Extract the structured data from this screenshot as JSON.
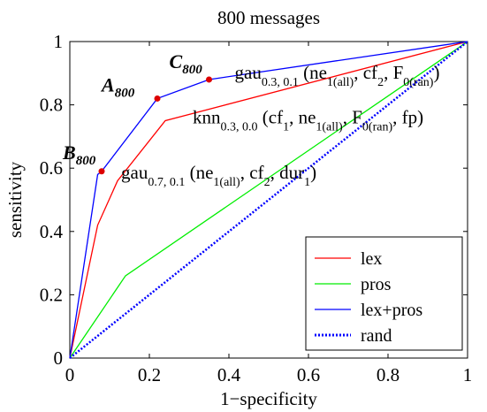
{
  "chart_data": {
    "type": "line",
    "title": "800 messages",
    "xlabel": "1−specificity",
    "ylabel": "sensitivity",
    "xlim": [
      0,
      1
    ],
    "ylim": [
      0,
      1
    ],
    "xticks": [
      "0",
      "0.2",
      "0.4",
      "0.6",
      "0.8",
      "1"
    ],
    "yticks": [
      "0",
      "0.2",
      "0.4",
      "0.6",
      "0.8",
      "1"
    ],
    "grid": false,
    "legend_position": "bottom-right",
    "series": [
      {
        "name": "lex",
        "color": "#ff0000",
        "style": "solid",
        "x": [
          0,
          0.07,
          0.12,
          0.24,
          1
        ],
        "y": [
          0,
          0.42,
          0.56,
          0.75,
          1
        ]
      },
      {
        "name": "pros",
        "color": "#00ee00",
        "style": "solid",
        "x": [
          0,
          0.14,
          1
        ],
        "y": [
          0,
          0.26,
          1
        ]
      },
      {
        "name": "lex+pros",
        "color": "#0000ff",
        "style": "solid",
        "x": [
          0,
          0.07,
          0.08,
          0.22,
          0.35,
          1
        ],
        "y": [
          0,
          0.58,
          0.59,
          0.82,
          0.88,
          1
        ]
      },
      {
        "name": "rand",
        "color": "#0000ff",
        "style": "dotted",
        "x": [
          0,
          1
        ],
        "y": [
          0,
          1
        ]
      }
    ],
    "points": [
      {
        "label": "B",
        "sub": "800",
        "x": 0.08,
        "y": 0.59,
        "annotation": {
          "base": "gau",
          "sub": "0.7, 0.1",
          "parts": [
            {
              "t": " (ne",
              "s": "1(all)"
            },
            {
              "t": ", cf",
              "s": "2"
            },
            {
              "t": ", dur",
              "s": "1"
            },
            {
              "t": ")",
              "s": ""
            }
          ]
        }
      },
      {
        "label": "A",
        "sub": "800",
        "x": 0.22,
        "y": 0.82,
        "annotation": {
          "base": "knn",
          "sub": "0.3, 0.0",
          "parts": [
            {
              "t": " (cf",
              "s": "1"
            },
            {
              "t": ", ne",
              "s": "1(all)"
            },
            {
              "t": ", F",
              "s": "0(ran)"
            },
            {
              "t": ", fp)",
              "s": ""
            }
          ]
        }
      },
      {
        "label": "C",
        "sub": "800",
        "x": 0.35,
        "y": 0.88,
        "annotation": {
          "base": "gau",
          "sub": "0.3, 0.1",
          "parts": [
            {
              "t": " (ne",
              "s": "1(all)"
            },
            {
              "t": ", cf",
              "s": "2"
            },
            {
              "t": ", F",
              "s": "0(ran)"
            },
            {
              "t": ")",
              "s": ""
            }
          ]
        }
      }
    ],
    "point_color": "#dd0000"
  }
}
